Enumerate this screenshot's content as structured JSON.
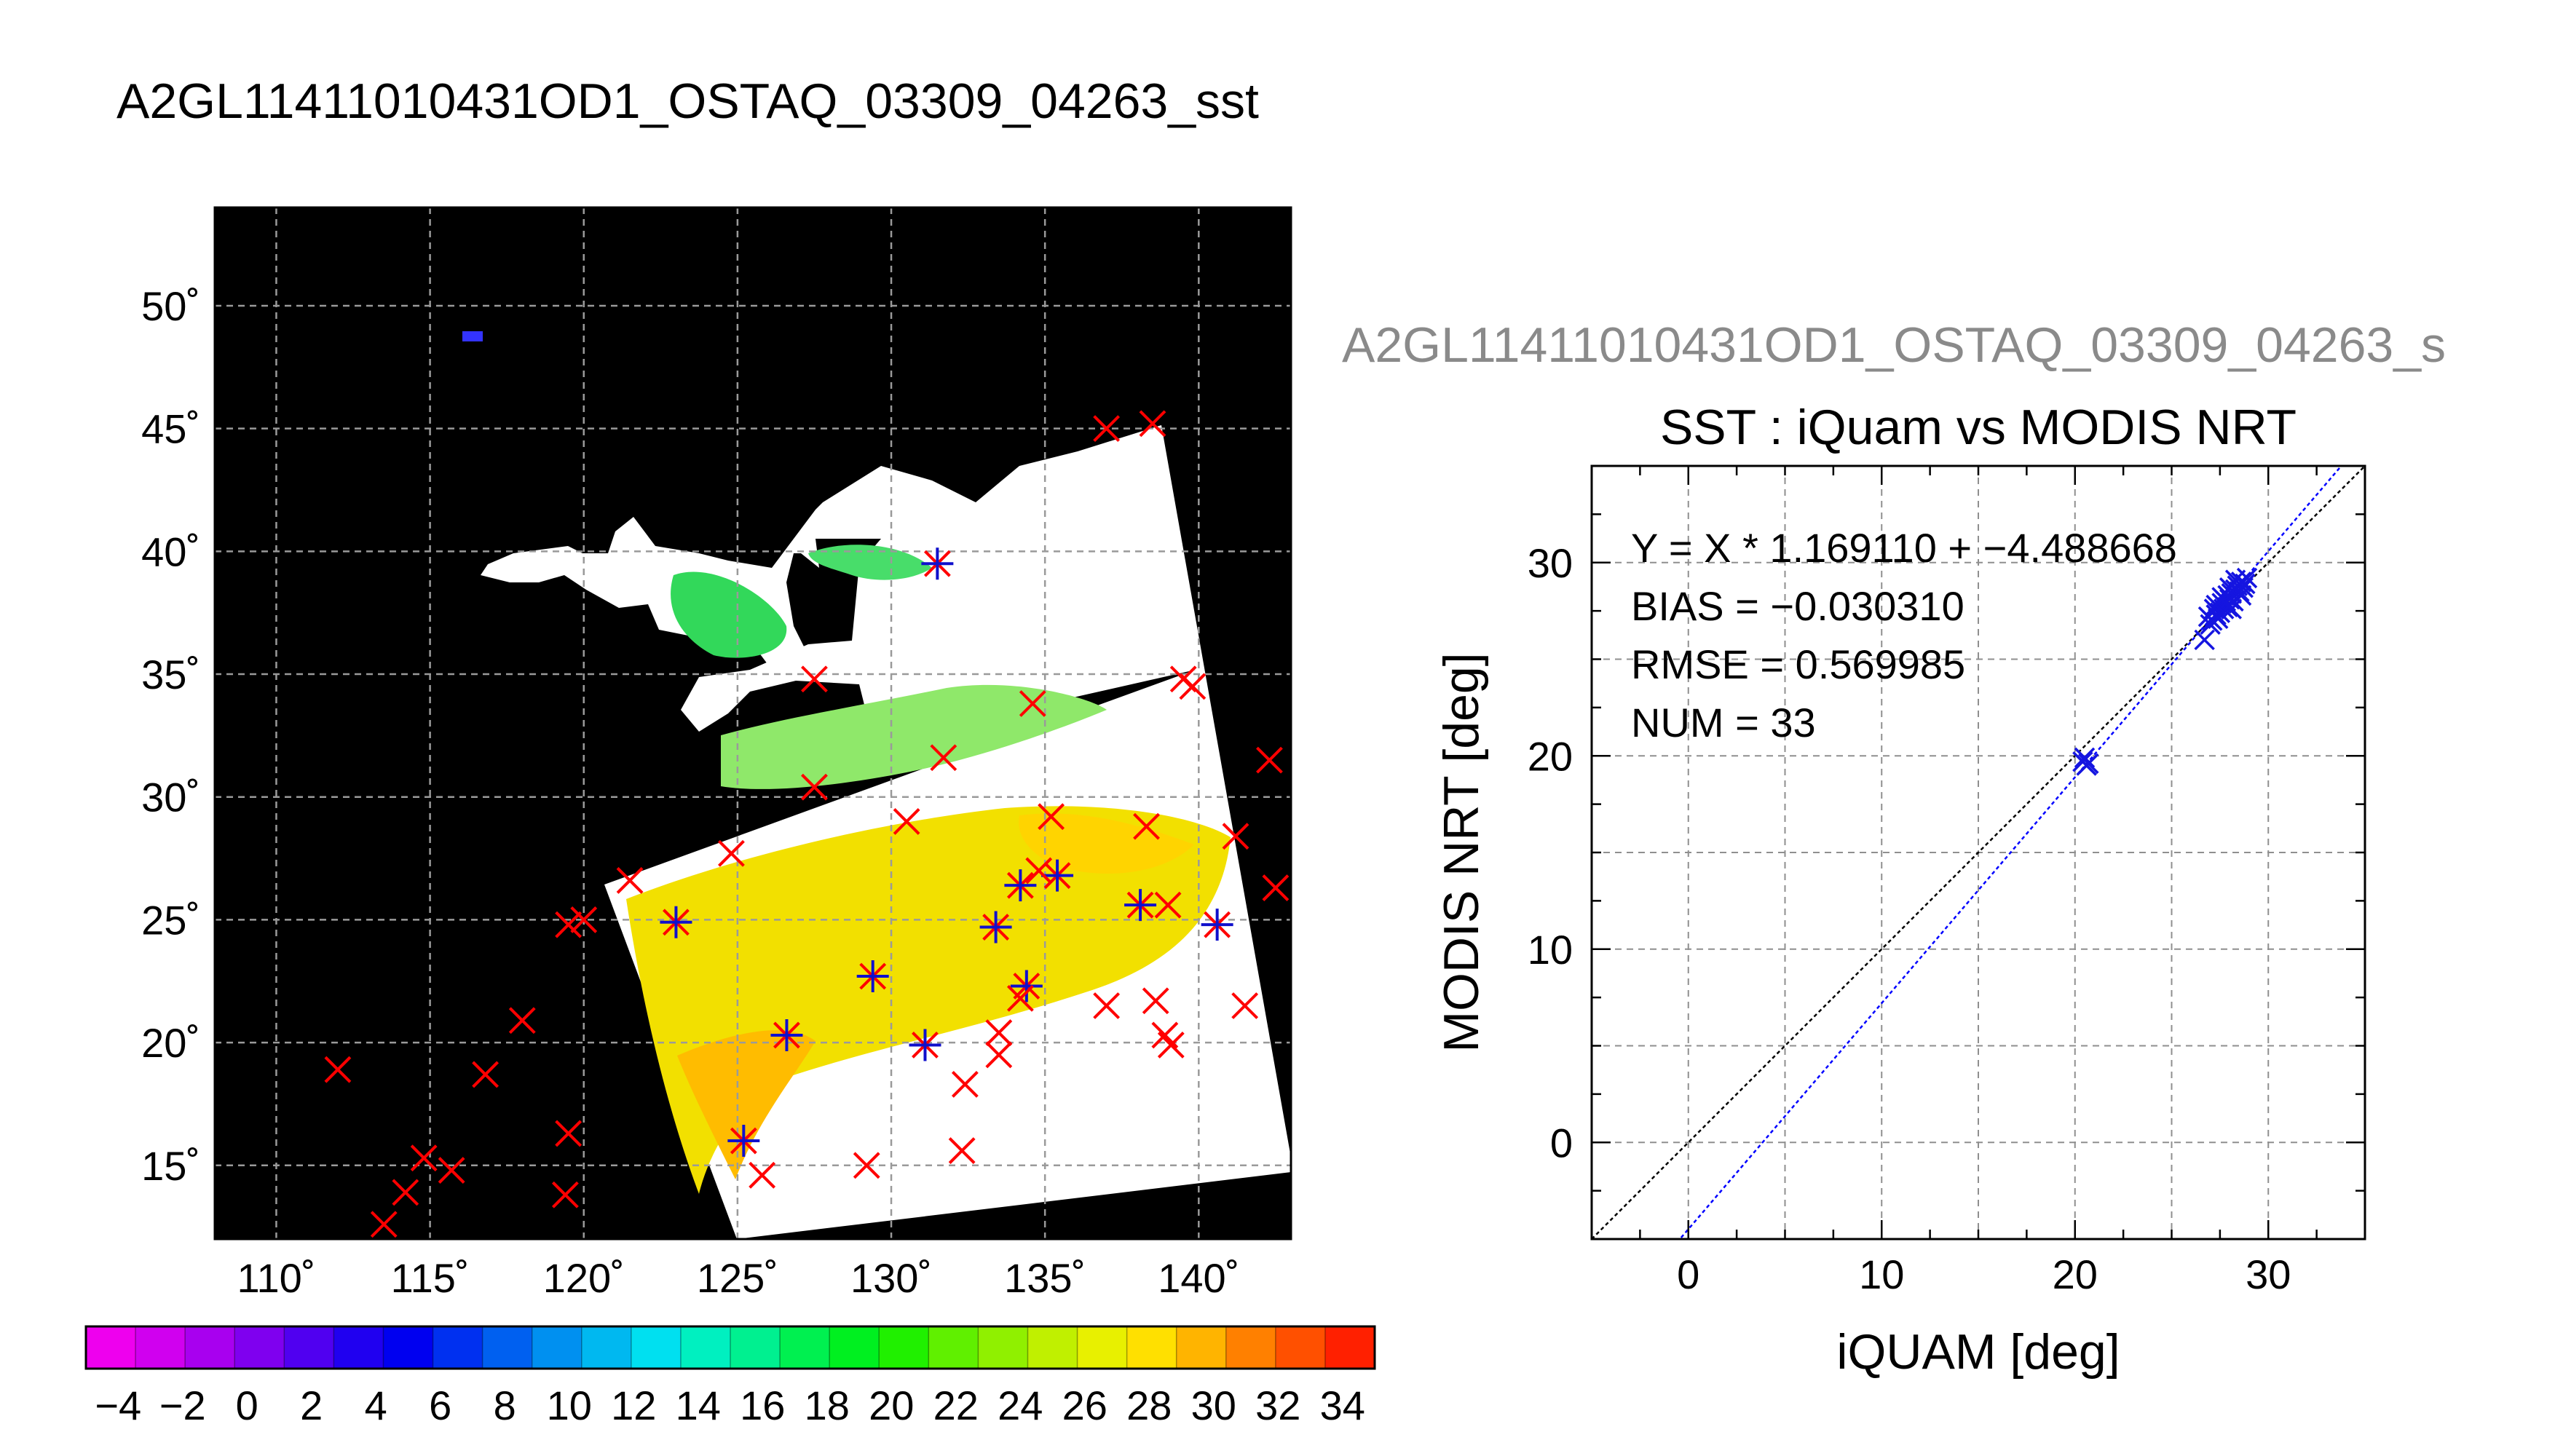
{
  "main_title": "A2GL11411010431OD1_OSTAQ_03309_04263_sst",
  "colors": {
    "land": "#000000",
    "swath": "#ffffff",
    "match_marker": "#ff0000",
    "buoy_marker": "#1010cc",
    "scatter_marker": "#1515e0",
    "fit_line": "#0000ff",
    "one_to_one_line": "#000000",
    "subtitle": "#8a8a8a"
  },
  "chart_data": [
    {
      "type": "heatmap",
      "kind": "map",
      "xlim": [
        108,
        143
      ],
      "ylim": [
        12,
        54
      ],
      "x_ticks": [
        110,
        115,
        120,
        125,
        130,
        135,
        140
      ],
      "y_ticks": [
        15,
        20,
        25,
        30,
        35,
        40,
        45,
        50
      ],
      "x_tick_labels": [
        "110˚",
        "115˚",
        "120˚",
        "125˚",
        "130˚",
        "135˚",
        "140˚"
      ],
      "y_tick_labels": [
        "15˚",
        "20˚",
        "25˚",
        "30˚",
        "35˚",
        "40˚",
        "45˚",
        "50˚"
      ],
      "grid": true,
      "colorbar": {
        "min": -5,
        "max": 35,
        "tick_values": [
          -4,
          -2,
          0,
          2,
          4,
          6,
          8,
          10,
          12,
          14,
          16,
          18,
          20,
          22,
          24,
          26,
          28,
          30,
          32,
          34
        ],
        "tick_labels": [
          "−4",
          "−2",
          "0",
          "2",
          "4",
          "6",
          "8",
          "10",
          "12",
          "14",
          "16",
          "18",
          "20",
          "22",
          "24",
          "26",
          "28",
          "30",
          "32",
          "34"
        ],
        "colors": [
          "#ee00ee",
          "#d000ef",
          "#a800ef",
          "#7f00ef",
          "#5000f0",
          "#2000f0",
          "#0000f0",
          "#0030f0",
          "#0060f0",
          "#0090f0",
          "#00b8f0",
          "#00e0f0",
          "#00f0c0",
          "#00f090",
          "#00f050",
          "#00f020",
          "#20f000",
          "#60f000",
          "#90f000",
          "#c0f000",
          "#e8f000",
          "#ffe000",
          "#ffb400",
          "#ff8000",
          "#ff5000",
          "#ff2000"
        ]
      },
      "markers": [
        {
          "lon": 137.0,
          "lat": 45.0,
          "type": "x"
        },
        {
          "lon": 138.5,
          "lat": 45.2,
          "type": "x"
        },
        {
          "lon": 131.5,
          "lat": 39.5,
          "type": "both"
        },
        {
          "lon": 127.5,
          "lat": 34.8,
          "type": "x"
        },
        {
          "lon": 139.8,
          "lat": 34.5,
          "type": "x"
        },
        {
          "lon": 139.5,
          "lat": 34.8,
          "type": "x"
        },
        {
          "lon": 134.6,
          "lat": 33.8,
          "type": "x"
        },
        {
          "lon": 131.7,
          "lat": 31.6,
          "type": "x"
        },
        {
          "lon": 142.3,
          "lat": 31.5,
          "type": "x"
        },
        {
          "lon": 127.5,
          "lat": 30.4,
          "type": "x"
        },
        {
          "lon": 130.5,
          "lat": 29.0,
          "type": "x"
        },
        {
          "lon": 135.2,
          "lat": 29.2,
          "type": "x"
        },
        {
          "lon": 138.3,
          "lat": 28.8,
          "type": "x"
        },
        {
          "lon": 141.2,
          "lat": 28.4,
          "type": "x"
        },
        {
          "lon": 124.8,
          "lat": 27.7,
          "type": "x"
        },
        {
          "lon": 121.5,
          "lat": 26.6,
          "type": "x"
        },
        {
          "lon": 142.5,
          "lat": 26.3,
          "type": "x"
        },
        {
          "lon": 134.2,
          "lat": 26.4,
          "type": "both"
        },
        {
          "lon": 135.4,
          "lat": 26.8,
          "type": "both"
        },
        {
          "lon": 134.8,
          "lat": 27.0,
          "type": "x"
        },
        {
          "lon": 138.1,
          "lat": 25.6,
          "type": "both"
        },
        {
          "lon": 139.0,
          "lat": 25.6,
          "type": "x"
        },
        {
          "lon": 123.0,
          "lat": 24.9,
          "type": "both"
        },
        {
          "lon": 119.5,
          "lat": 24.8,
          "type": "x"
        },
        {
          "lon": 120.0,
          "lat": 25.0,
          "type": "x"
        },
        {
          "lon": 133.4,
          "lat": 24.7,
          "type": "both"
        },
        {
          "lon": 140.6,
          "lat": 24.8,
          "type": "both"
        },
        {
          "lon": 129.4,
          "lat": 22.7,
          "type": "both"
        },
        {
          "lon": 134.4,
          "lat": 22.3,
          "type": "both"
        },
        {
          "lon": 134.2,
          "lat": 21.8,
          "type": "x"
        },
        {
          "lon": 137.0,
          "lat": 21.5,
          "type": "x"
        },
        {
          "lon": 138.6,
          "lat": 21.7,
          "type": "x"
        },
        {
          "lon": 141.5,
          "lat": 21.5,
          "type": "x"
        },
        {
          "lon": 118.0,
          "lat": 20.9,
          "type": "x"
        },
        {
          "lon": 126.6,
          "lat": 20.3,
          "type": "both"
        },
        {
          "lon": 133.5,
          "lat": 20.4,
          "type": "x"
        },
        {
          "lon": 138.9,
          "lat": 20.3,
          "type": "x"
        },
        {
          "lon": 139.1,
          "lat": 19.9,
          "type": "x"
        },
        {
          "lon": 131.1,
          "lat": 19.9,
          "type": "both"
        },
        {
          "lon": 133.5,
          "lat": 19.5,
          "type": "x"
        },
        {
          "lon": 112.0,
          "lat": 18.9,
          "type": "x"
        },
        {
          "lon": 116.8,
          "lat": 18.7,
          "type": "x"
        },
        {
          "lon": 132.4,
          "lat": 18.3,
          "type": "x"
        },
        {
          "lon": 119.5,
          "lat": 16.3,
          "type": "x"
        },
        {
          "lon": 125.2,
          "lat": 16.0,
          "type": "both"
        },
        {
          "lon": 132.3,
          "lat": 15.6,
          "type": "x"
        },
        {
          "lon": 114.8,
          "lat": 15.3,
          "type": "x"
        },
        {
          "lon": 115.7,
          "lat": 14.8,
          "type": "x"
        },
        {
          "lon": 129.2,
          "lat": 15.0,
          "type": "x"
        },
        {
          "lon": 125.8,
          "lat": 14.6,
          "type": "x"
        },
        {
          "lon": 114.2,
          "lat": 13.9,
          "type": "x"
        },
        {
          "lon": 119.4,
          "lat": 13.8,
          "type": "x"
        },
        {
          "lon": 113.5,
          "lat": 12.6,
          "type": "x"
        }
      ]
    },
    {
      "type": "scatter",
      "subtitle": "A2GL11411010431OD1_OSTAQ_03309_04263_s",
      "title": "SST : iQuam vs MODIS NRT",
      "xlabel": "iQUAM [deg]",
      "ylabel": "MODIS NRT [deg]",
      "xlim": [
        -5,
        35
      ],
      "ylim": [
        -5,
        35
      ],
      "x_ticks": [
        0,
        10,
        20,
        30
      ],
      "y_ticks": [
        0,
        10,
        20,
        30
      ],
      "grid": true,
      "annotations": [
        "Y = X * 1.169110 + −4.488668",
        "BIAS = −0.030310",
        "RMSE = 0.569985",
        "NUM = 33"
      ],
      "fit": {
        "slope": 1.16911,
        "intercept": -4.488668
      },
      "one_to_one": true,
      "points": [
        [
          20.4,
          19.7
        ],
        [
          20.6,
          19.5
        ],
        [
          20.5,
          19.9
        ],
        [
          20.7,
          19.6
        ],
        [
          26.7,
          26.0
        ],
        [
          26.9,
          27.2
        ],
        [
          27.1,
          27.0
        ],
        [
          27.3,
          27.3
        ],
        [
          27.2,
          27.6
        ],
        [
          27.4,
          27.1
        ],
        [
          27.6,
          27.9
        ],
        [
          27.5,
          27.4
        ],
        [
          27.7,
          27.6
        ],
        [
          27.8,
          28.0
        ],
        [
          27.9,
          28.3
        ],
        [
          27.9,
          27.7
        ],
        [
          28.0,
          28.1
        ],
        [
          28.1,
          28.4
        ],
        [
          28.2,
          28.0
        ],
        [
          28.3,
          28.6
        ],
        [
          28.4,
          28.8
        ],
        [
          28.5,
          28.5
        ],
        [
          28.6,
          29.0
        ],
        [
          28.7,
          28.7
        ],
        [
          28.8,
          28.9
        ],
        [
          28.0,
          28.7
        ],
        [
          27.6,
          28.2
        ],
        [
          27.3,
          27.8
        ],
        [
          28.3,
          29.1
        ],
        [
          28.6,
          28.3
        ],
        [
          27.0,
          26.8
        ],
        [
          28.9,
          29.2
        ],
        [
          28.1,
          27.6
        ]
      ]
    }
  ]
}
